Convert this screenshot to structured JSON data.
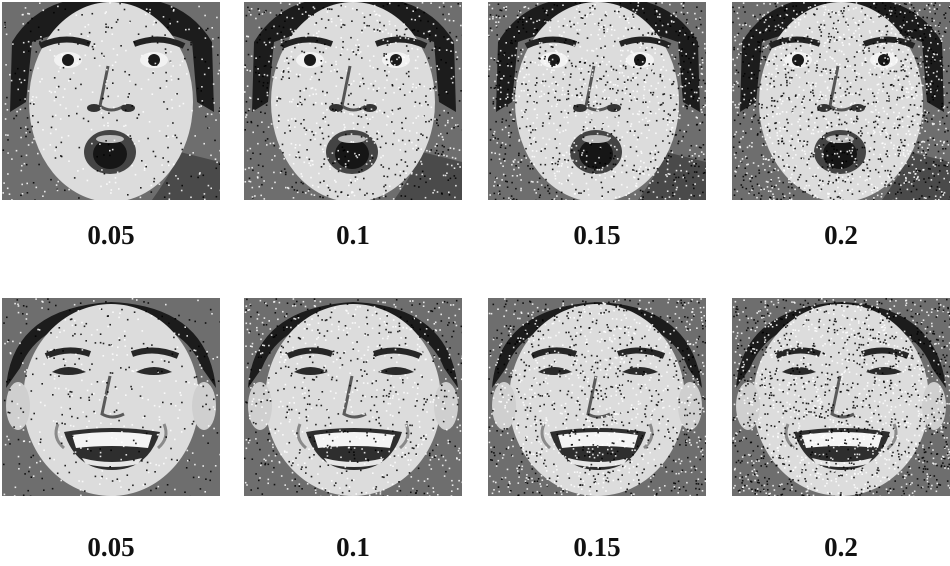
{
  "rows": [
    {
      "expression": "surprised",
      "tiles": [
        {
          "label": "0.05",
          "noise_density": 0.05
        },
        {
          "label": "0.1",
          "noise_density": 0.1
        },
        {
          "label": "0.15",
          "noise_density": 0.15
        },
        {
          "label": "0.2",
          "noise_density": 0.2
        }
      ]
    },
    {
      "expression": "smiling",
      "tiles": [
        {
          "label": "0.05",
          "noise_density": 0.05
        },
        {
          "label": "0.1",
          "noise_density": 0.1
        },
        {
          "label": "0.15",
          "noise_density": 0.15
        },
        {
          "label": "0.2",
          "noise_density": 0.2
        }
      ]
    }
  ],
  "colors": {
    "background": "#ffffff",
    "label_text": "#111111",
    "hair": "#1c1c1c",
    "skin": "#dcdcdc",
    "backdrop": "#6e6e6e"
  }
}
